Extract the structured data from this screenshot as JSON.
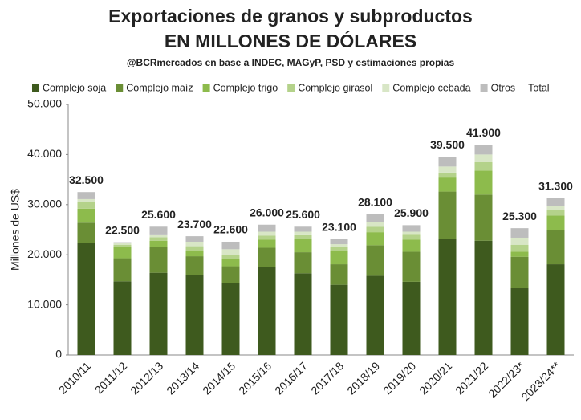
{
  "chart_data": {
    "type": "stacked_bar",
    "title": "Exportaciones de granos y subproductos",
    "title_line2": "EN MILLONES DE DÓLARES",
    "subtitle": "@BCRmercados en base a INDEC, MAGyP, PSD y estimaciones propias",
    "y_label": "Millones de US$",
    "categories": [
      "2010/11",
      "2011/12",
      "2012/13",
      "2013/14",
      "2014/15",
      "2015/16",
      "2016/17",
      "2017/18",
      "2018/19",
      "2019/20",
      "2020/21",
      "2021/22",
      "2022/23*",
      "2023/24**"
    ],
    "series": [
      {
        "name": "Complejo soja",
        "color": "#3e5a1e",
        "values": [
          22300,
          14700,
          16400,
          16000,
          14300,
          17600,
          16300,
          14000,
          15800,
          14600,
          23200,
          22800,
          13300,
          18100
        ]
      },
      {
        "name": "Complejo maíz",
        "color": "#6a8e35",
        "values": [
          4100,
          4600,
          5200,
          3700,
          3400,
          3800,
          4200,
          4100,
          6100,
          6000,
          9400,
          9200,
          6300,
          6900
        ]
      },
      {
        "name": "Complejo trigo",
        "color": "#8dbb4c",
        "values": [
          2800,
          2200,
          1200,
          1000,
          1500,
          1600,
          2700,
          2700,
          2600,
          2400,
          2800,
          4800,
          1000,
          2800
        ]
      },
      {
        "name": "Complejo girasol",
        "color": "#b4d28a",
        "values": [
          1400,
          500,
          700,
          1000,
          800,
          800,
          700,
          700,
          1100,
          1000,
          1000,
          1700,
          1400,
          1200
        ]
      },
      {
        "name": "Complejo cebada",
        "color": "#d8e6c6",
        "values": [
          500,
          300,
          400,
          900,
          1100,
          800,
          700,
          600,
          1000,
          600,
          1200,
          1500,
          1400,
          800
        ]
      },
      {
        "name": "Otros",
        "color": "#bdbdbd",
        "values": [
          1400,
          200,
          1700,
          1100,
          1500,
          1400,
          1000,
          1000,
          1500,
          1300,
          1900,
          1900,
          1900,
          1500
        ]
      }
    ],
    "total": {
      "name": "Total",
      "values": [
        32500,
        22500,
        25600,
        23700,
        22600,
        26000,
        25600,
        23100,
        28100,
        25900,
        39500,
        41900,
        25300,
        31300
      ],
      "value_labels": [
        "32.500",
        "22.500",
        "25.600",
        "23.700",
        "22.600",
        "26.000",
        "25.600",
        "23.100",
        "28.100",
        "25.900",
        "39.500",
        "41.900",
        "25.300",
        "31.300"
      ]
    },
    "ylim": [
      0,
      50000
    ],
    "yticks": [
      0,
      {
        "value": 10000,
        "label": "10.000"
      },
      {
        "value": 20000,
        "label": "20.000"
      },
      {
        "value": 30000,
        "label": "30.000"
      },
      {
        "value": 40000,
        "label": "40.000"
      },
      {
        "value": 50000,
        "label": "50.000"
      }
    ],
    "grid": false
  }
}
